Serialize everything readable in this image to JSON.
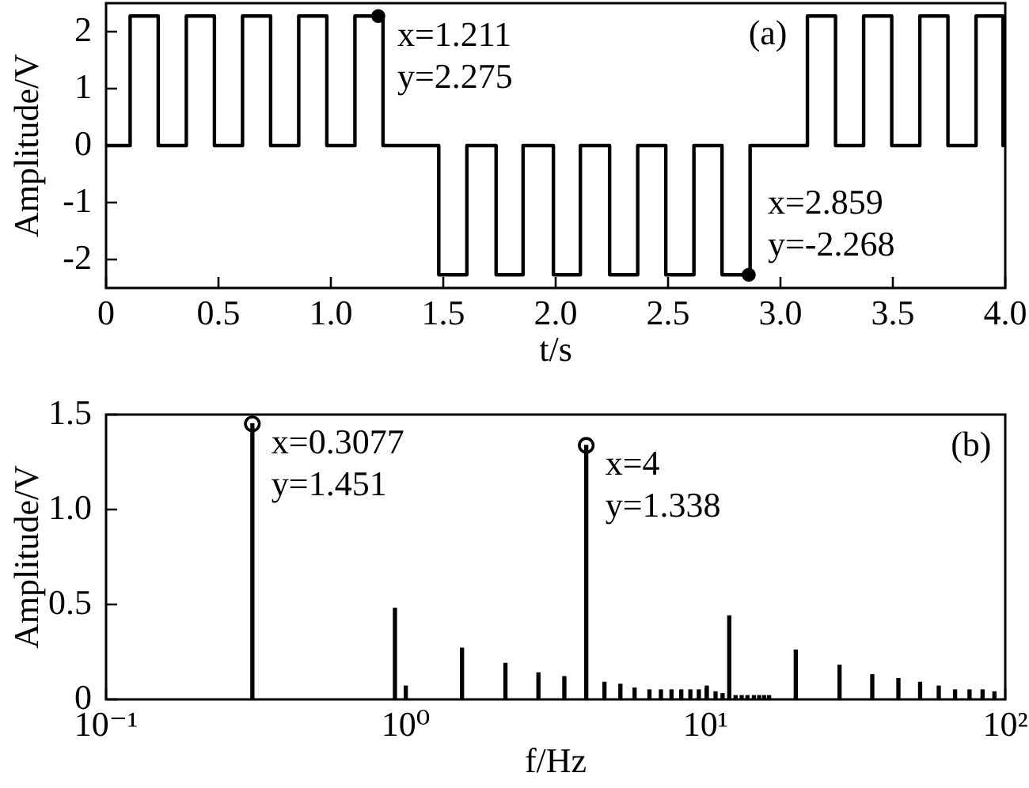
{
  "chart_data": [
    {
      "type": "step",
      "xlabel": "t/s",
      "ylabel": "Amplitude/V",
      "color": "#000000",
      "x": [
        0,
        0.107,
        0.232,
        0.357,
        0.482,
        0.607,
        0.732,
        0.857,
        0.982,
        1.107,
        1.232,
        1.48,
        1.605,
        1.735,
        1.855,
        1.99,
        2.11,
        2.24,
        2.365,
        2.49,
        2.615,
        2.74,
        2.865,
        3.12,
        3.245,
        3.37,
        3.495,
        3.62,
        3.745,
        3.87,
        3.99
      ],
      "values": [
        0,
        2.275,
        0,
        2.275,
        0,
        2.275,
        0,
        2.275,
        0,
        2.275,
        0,
        -2.268,
        0,
        -2.268,
        0,
        -2.268,
        0,
        -2.268,
        0,
        -2.268,
        0,
        -2.268,
        0,
        2.275,
        0,
        2.275,
        0,
        2.275,
        0,
        2.275,
        0
      ],
      "xlim": [
        0,
        4
      ],
      "xticks": [
        0,
        0.5,
        {
          "value": 1,
          "label": "1.0"
        },
        1.5,
        {
          "value": 2,
          "label": "2.0"
        },
        2.5,
        {
          "value": 3,
          "label": "3.0"
        },
        3.5,
        {
          "value": 4,
          "label": "4.0"
        }
      ],
      "ylim": [
        -2.5,
        2.5
      ],
      "yticks": [
        -2,
        -1,
        0,
        1,
        2
      ],
      "annotations": [
        {
          "text": "x=1.211\ny=2.275",
          "x": 1.211,
          "y": 2.275
        },
        {
          "text": "x=2.859\ny=-2.268",
          "x": 2.859,
          "y": -2.268
        },
        "(a)"
      ]
    },
    {
      "type": "bar",
      "xlabel": "f/Hz",
      "ylabel": "Amplitude/V",
      "color": "#000000",
      "log": "x",
      "x": [
        0.3077,
        0.92,
        1.0,
        1.54,
        2.15,
        2.77,
        3.38,
        4,
        4.6,
        5.2,
        5.8,
        6.5,
        7.1,
        7.7,
        8.3,
        8.9,
        9.5,
        10.1,
        10.8,
        11.4,
        12,
        12.6,
        13.2,
        13.8,
        14.5,
        15.1,
        15.7,
        16.3,
        20,
        28,
        36,
        44,
        52,
        60,
        68,
        76,
        84,
        92
      ],
      "values": [
        1.451,
        0.48,
        0.07,
        0.27,
        0.19,
        0.14,
        0.12,
        1.338,
        0.09,
        0.08,
        0.06,
        0.05,
        0.05,
        0.05,
        0.05,
        0.05,
        0.05,
        0.07,
        0.04,
        0.03,
        0.44,
        0.02,
        0.02,
        0.02,
        0.02,
        0.02,
        0.02,
        0.02,
        0.26,
        0.18,
        0.13,
        0.11,
        0.09,
        0.07,
        0.05,
        0.05,
        0.05,
        0.04
      ],
      "xlim": [
        0.1,
        100
      ],
      "xticks": [
        {
          "value": 0.1,
          "label": "10⁻¹"
        },
        {
          "value": 1,
          "label": "10⁰"
        },
        {
          "value": 10,
          "label": "10¹"
        },
        {
          "value": 100,
          "label": "10²"
        }
      ],
      "ylim": [
        0,
        1.5
      ],
      "yticks": [
        0,
        0.5,
        {
          "value": 1,
          "label": "1.0"
        },
        1.5
      ],
      "annotations": [
        {
          "text": "x=0.3077\ny=1.451",
          "x": 0.3077,
          "y": 1.451
        },
        {
          "text": "x=4\ny=1.338",
          "x": 4,
          "y": 1.338
        },
        "(b)"
      ]
    }
  ]
}
